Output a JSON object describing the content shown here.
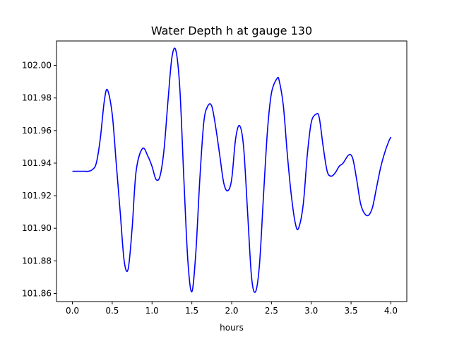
{
  "chart_data": {
    "type": "line",
    "title": "Water Depth h at gauge 130",
    "xlabel": "hours",
    "ylabel": "",
    "xlim": [
      -0.2,
      4.2
    ],
    "ylim": [
      101.855,
      102.015
    ],
    "x_ticks": [
      0.0,
      0.5,
      1.0,
      1.5,
      2.0,
      2.5,
      3.0,
      3.5,
      4.0
    ],
    "x_tick_labels": [
      "0.0",
      "0.5",
      "1.0",
      "1.5",
      "2.0",
      "2.5",
      "3.0",
      "3.5",
      "4.0"
    ],
    "y_ticks": [
      101.86,
      101.88,
      101.9,
      101.92,
      101.94,
      101.96,
      101.98,
      102.0
    ],
    "y_tick_labels": [
      "101.86",
      "101.88",
      "101.90",
      "101.92",
      "101.94",
      "101.96",
      "101.98",
      "102.00"
    ],
    "grid": false,
    "series": [
      {
        "color": "#0000ff",
        "x": [
          0.0,
          0.05,
          0.1,
          0.15,
          0.2,
          0.25,
          0.3,
          0.35,
          0.4,
          0.44,
          0.5,
          0.55,
          0.6,
          0.65,
          0.7,
          0.75,
          0.8,
          0.88,
          0.95,
          1.0,
          1.05,
          1.1,
          1.15,
          1.2,
          1.25,
          1.3,
          1.35,
          1.4,
          1.45,
          1.5,
          1.55,
          1.6,
          1.65,
          1.7,
          1.75,
          1.8,
          1.85,
          1.9,
          1.95,
          2.0,
          2.05,
          2.1,
          2.15,
          2.2,
          2.25,
          2.3,
          2.35,
          2.4,
          2.45,
          2.5,
          2.57,
          2.6,
          2.65,
          2.7,
          2.75,
          2.8,
          2.84,
          2.9,
          2.95,
          3.0,
          3.06,
          3.1,
          3.15,
          3.2,
          3.25,
          3.3,
          3.35,
          3.4,
          3.47,
          3.52,
          3.57,
          3.62,
          3.67,
          3.72,
          3.77,
          3.82,
          3.87,
          3.92,
          3.97,
          4.0
        ],
        "y": [
          101.935,
          101.935,
          101.935,
          101.935,
          101.935,
          101.936,
          101.94,
          101.955,
          101.978,
          101.985,
          101.97,
          101.94,
          101.91,
          101.88,
          101.875,
          101.9,
          101.935,
          101.949,
          101.944,
          101.938,
          101.93,
          101.932,
          101.948,
          101.978,
          102.005,
          102.009,
          101.985,
          101.93,
          101.88,
          101.861,
          101.885,
          101.93,
          101.965,
          101.975,
          101.975,
          101.962,
          101.945,
          101.928,
          101.923,
          101.93,
          101.955,
          101.963,
          101.95,
          101.91,
          101.87,
          101.861,
          101.878,
          101.92,
          101.96,
          101.983,
          101.992,
          101.99,
          101.975,
          101.945,
          101.92,
          101.903,
          101.9,
          101.915,
          101.945,
          101.965,
          101.97,
          101.968,
          101.95,
          101.935,
          101.932,
          101.934,
          101.938,
          101.94,
          101.945,
          101.943,
          101.93,
          101.915,
          101.909,
          101.908,
          101.913,
          101.925,
          101.937,
          101.946,
          101.953,
          101.956
        ]
      }
    ]
  }
}
